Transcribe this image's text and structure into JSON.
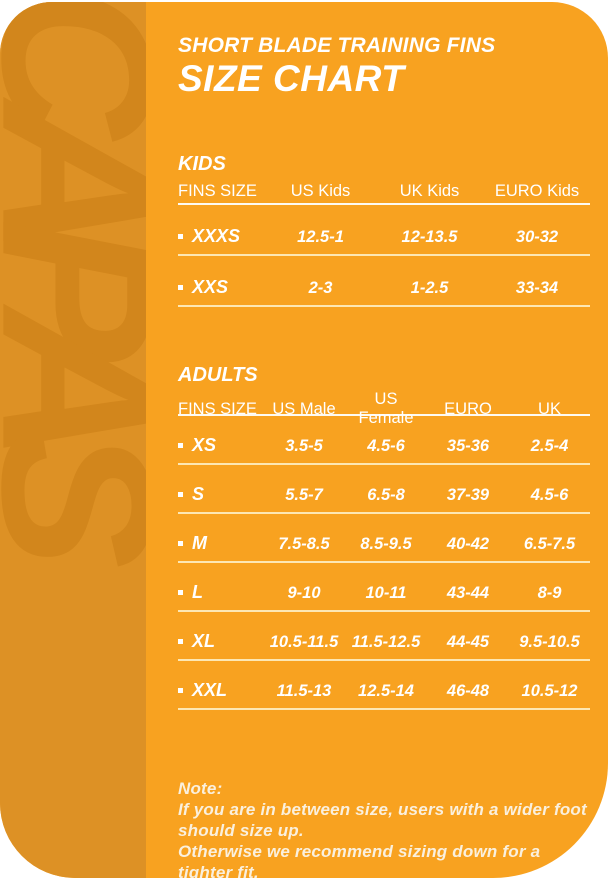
{
  "brand": "CAPAS",
  "title": {
    "line1": "SHORT BLADE TRAINING FINS",
    "line2": "SIZE CHART"
  },
  "kids_table": {
    "section_label": "KIDS",
    "headers": [
      "FINS SIZE",
      "US Kids",
      "UK Kids",
      "EURO Kids"
    ],
    "rows": [
      {
        "size": "XXXS",
        "values": [
          "12.5-1",
          "12-13.5",
          "30-32"
        ]
      },
      {
        "size": "XXS",
        "values": [
          "2-3",
          "1-2.5",
          "33-34"
        ]
      }
    ]
  },
  "adults_table": {
    "section_label": "ADULTS",
    "headers": [
      "FINS SIZE",
      "US Male",
      "US Female",
      "EURO",
      "UK"
    ],
    "rows": [
      {
        "size": "XS",
        "values": [
          "3.5-5",
          "4.5-6",
          "35-36",
          "2.5-4"
        ]
      },
      {
        "size": "S",
        "values": [
          "5.5-7",
          "6.5-8",
          "37-39",
          "4.5-6"
        ]
      },
      {
        "size": "M",
        "values": [
          "7.5-8.5",
          "8.5-9.5",
          "40-42",
          "6.5-7.5"
        ]
      },
      {
        "size": "L",
        "values": [
          "9-10",
          "10-11",
          "43-44",
          "8-9"
        ]
      },
      {
        "size": "XL",
        "values": [
          "10.5-11.5",
          "11.5-12.5",
          "44-45",
          "9.5-10.5"
        ]
      },
      {
        "size": "XXL",
        "values": [
          "11.5-13",
          "12.5-14",
          "46-48",
          "10.5-12"
        ]
      }
    ]
  },
  "note": {
    "label": "Note:",
    "lines": [
      "If you are in between size, users with a wider foot",
      "should size up.",
      "Otherwise we recommend sizing down for a tighter fit."
    ]
  },
  "colors": {
    "card_orange": "#F8A220",
    "stripe_orange": "#DD9125",
    "watermark_orange": "#D2861C",
    "text_white": "#FFFFFF",
    "row_line_cream": "#FDEBBC",
    "note_cream": "#FAF0DE"
  }
}
